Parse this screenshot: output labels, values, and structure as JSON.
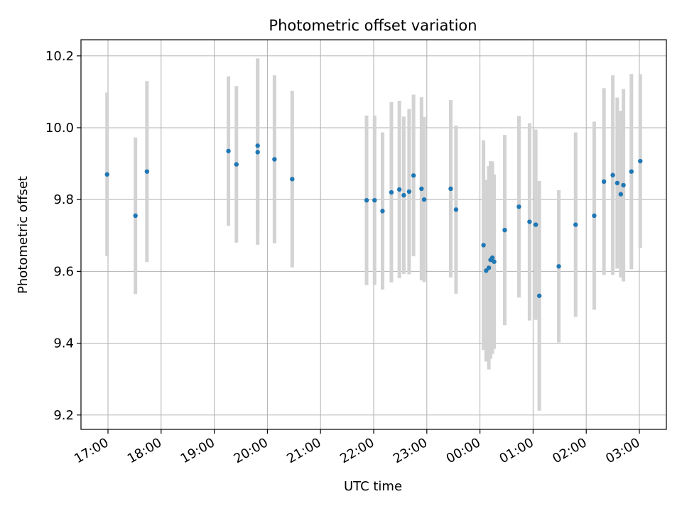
{
  "chart_data": {
    "type": "scatter",
    "title": "Photometric offset variation",
    "xlabel": "UTC time",
    "ylabel": "Photometric offset",
    "x_ticks": [
      "17:00",
      "18:00",
      "19:00",
      "20:00",
      "21:00",
      "22:00",
      "23:00",
      "00:00",
      "01:00",
      "02:00",
      "03:00"
    ],
    "y_ticks": [
      "9.2",
      "9.4",
      "9.6",
      "9.8",
      "10.0",
      "10.2"
    ],
    "ylim": [
      9.16,
      10.245
    ],
    "grid": true,
    "x_unit_note": "hours since 17:00 UTC",
    "marker_color": "#1f77b4",
    "errorbar_color": "#d3d3d3",
    "points": [
      {
        "t": "16:59",
        "y": 9.87,
        "err": 0.228
      },
      {
        "t": "17:31",
        "y": 9.755,
        "err": 0.218
      },
      {
        "t": "17:44",
        "y": 9.878,
        "err": 0.252
      },
      {
        "t": "19:16",
        "y": 9.935,
        "err": 0.208
      },
      {
        "t": "19:25",
        "y": 9.898,
        "err": 0.218
      },
      {
        "t": "19:49",
        "y": 9.95,
        "err": 0.243
      },
      {
        "t": "19:49",
        "y": 9.932,
        "err": 0.258
      },
      {
        "t": "20:08",
        "y": 9.912,
        "err": 0.234
      },
      {
        "t": "20:28",
        "y": 9.857,
        "err": 0.246
      },
      {
        "t": "21:52",
        "y": 9.798,
        "err": 0.236
      },
      {
        "t": "22:01",
        "y": 9.798,
        "err": 0.236
      },
      {
        "t": "22:10",
        "y": 9.768,
        "err": 0.219
      },
      {
        "t": "22:20",
        "y": 9.82,
        "err": 0.251
      },
      {
        "t": "22:29",
        "y": 9.828,
        "err": 0.247
      },
      {
        "t": "22:34",
        "y": 9.812,
        "err": 0.219
      },
      {
        "t": "22:40",
        "y": 9.822,
        "err": 0.23
      },
      {
        "t": "22:45",
        "y": 9.867,
        "err": 0.225
      },
      {
        "t": "22:54",
        "y": 9.83,
        "err": 0.255
      },
      {
        "t": "22:57",
        "y": 9.8,
        "err": 0.23
      },
      {
        "t": "23:27",
        "y": 9.83,
        "err": 0.247
      },
      {
        "t": "23:33",
        "y": 9.772,
        "err": 0.234
      },
      {
        "t": "00:04",
        "y": 9.673,
        "err": 0.292
      },
      {
        "t": "00:07",
        "y": 9.602,
        "err": 0.253
      },
      {
        "t": "00:10",
        "y": 9.61,
        "err": 0.283
      },
      {
        "t": "00:12",
        "y": 9.632,
        "err": 0.275
      },
      {
        "t": "00:14",
        "y": 9.638,
        "err": 0.268
      },
      {
        "t": "00:16",
        "y": 9.627,
        "err": 0.243
      },
      {
        "t": "00:28",
        "y": 9.715,
        "err": 0.265
      },
      {
        "t": "00:44",
        "y": 9.78,
        "err": 0.253
      },
      {
        "t": "00:56",
        "y": 9.738,
        "err": 0.275
      },
      {
        "t": "01:03",
        "y": 9.73,
        "err": 0.265
      },
      {
        "t": "01:07",
        "y": 9.532,
        "err": 0.32
      },
      {
        "t": "01:29",
        "y": 9.614,
        "err": 0.212
      },
      {
        "t": "01:48",
        "y": 9.73,
        "err": 0.257
      },
      {
        "t": "02:09",
        "y": 9.755,
        "err": 0.262
      },
      {
        "t": "02:20",
        "y": 9.85,
        "err": 0.26
      },
      {
        "t": "02:30",
        "y": 9.868,
        "err": 0.278
      },
      {
        "t": "02:35",
        "y": 9.846,
        "err": 0.238
      },
      {
        "t": "02:39",
        "y": 9.815,
        "err": 0.232
      },
      {
        "t": "02:42",
        "y": 9.84,
        "err": 0.268
      },
      {
        "t": "02:51",
        "y": 9.878,
        "err": 0.272
      },
      {
        "t": "03:01",
        "y": 9.907,
        "err": 0.242
      }
    ]
  }
}
